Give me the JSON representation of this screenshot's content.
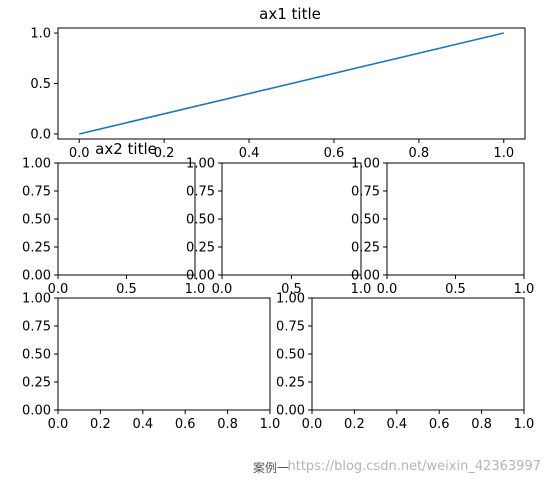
{
  "chart_data": [
    {
      "type": "line",
      "title": "ax1 title",
      "x": [
        0.0,
        1.0
      ],
      "series": [
        {
          "values": [
            0.0,
            1.0
          ],
          "color": "#1f77b4"
        }
      ],
      "xlim": [
        -0.05,
        1.05
      ],
      "ylim": [
        -0.05,
        1.05
      ],
      "xticks": [
        "0.0",
        "0.2",
        "0.4",
        "0.6",
        "0.8",
        "1.0"
      ],
      "yticks": [
        "0.0",
        "0.5",
        "1.0"
      ]
    },
    {
      "type": "line",
      "title": "ax2 title",
      "series": [],
      "xlim": [
        0,
        1
      ],
      "ylim": [
        0,
        1
      ],
      "xticks": [
        "0.0",
        "0.5",
        "1.0"
      ],
      "yticks": [
        "0.00",
        "0.25",
        "0.50",
        "0.75",
        "1.00"
      ]
    },
    {
      "type": "line",
      "title": "",
      "series": [],
      "xlim": [
        0,
        1
      ],
      "ylim": [
        0,
        1
      ],
      "xticks": [
        "0.0",
        "0.5",
        "1.0"
      ],
      "yticks": [
        "0.00",
        "0.25",
        "0.50",
        "0.75",
        "1.00"
      ]
    },
    {
      "type": "line",
      "title": "",
      "series": [],
      "xlim": [
        0,
        1
      ],
      "ylim": [
        0,
        1
      ],
      "xticks": [
        "0.0",
        "0.5",
        "1.0"
      ],
      "yticks": [
        "0.00",
        "0.25",
        "0.50",
        "0.75",
        "1.00"
      ]
    },
    {
      "type": "line",
      "title": "",
      "series": [],
      "xlim": [
        0,
        1
      ],
      "ylim": [
        0,
        1
      ],
      "xticks": [
        "0.0",
        "0.2",
        "0.4",
        "0.6",
        "0.8",
        "1.0"
      ],
      "yticks": [
        "0.00",
        "0.25",
        "0.50",
        "0.75",
        "1.00"
      ]
    },
    {
      "type": "line",
      "title": "",
      "series": [],
      "xlim": [
        0,
        1
      ],
      "ylim": [
        0,
        1
      ],
      "xticks": [
        "0.0",
        "0.2",
        "0.4",
        "0.6",
        "0.8",
        "1.0"
      ],
      "yticks": [
        "0.00",
        "0.25",
        "0.50",
        "0.75",
        "1.00"
      ]
    }
  ],
  "caption": "案例一",
  "watermark": "https://blog.csdn.net/weixin_42363997"
}
